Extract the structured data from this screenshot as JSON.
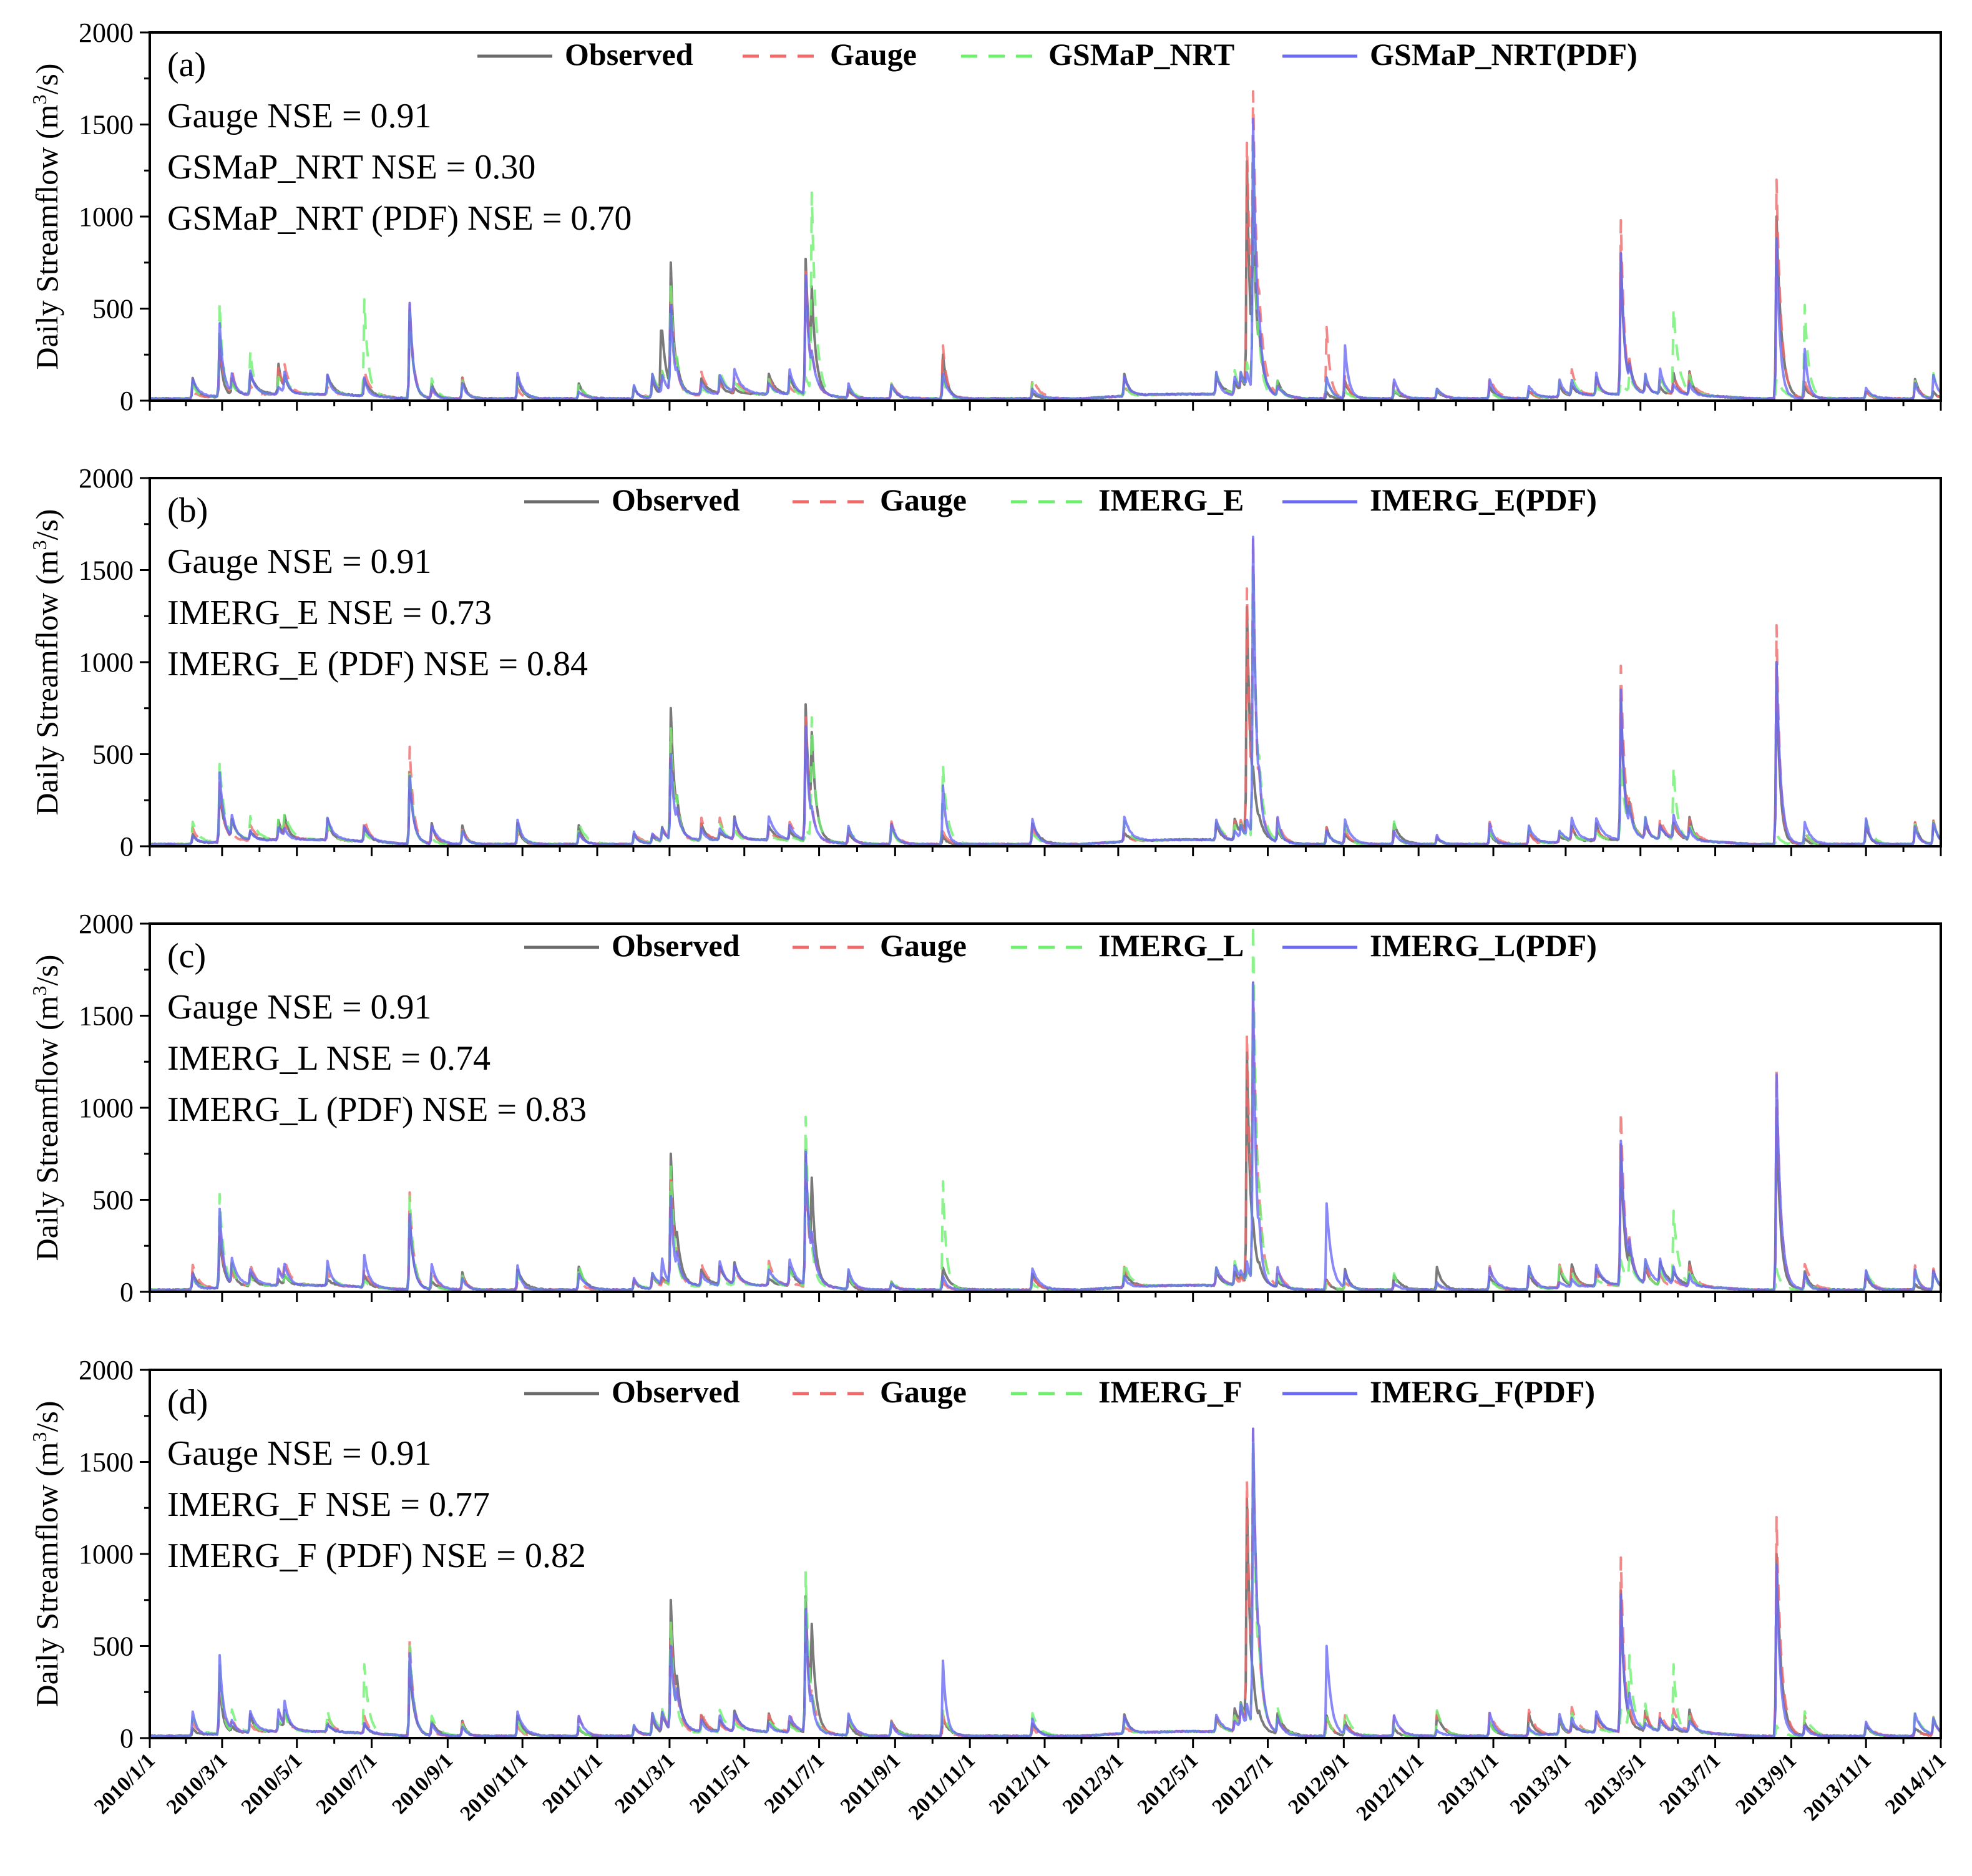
{
  "chart_data": [
    {
      "type": "line",
      "panel": "(a)",
      "ylabel": "Daily Streamflow (m³/s)",
      "ylim": [
        0,
        2000
      ],
      "yticks": [
        "0",
        "500",
        "1000",
        "1500",
        "2000"
      ],
      "legend": [
        "Observed",
        "Gauge",
        "GSMaP_NRT",
        "GSMaP_NRT(PDF)"
      ],
      "annotations": [
        "Gauge NSE = 0.91",
        "GSMaP_NRT NSE = 0.30",
        "GSMaP_NRT (PDF) NSE = 0.70"
      ],
      "series": [
        {
          "name": "Observed",
          "peaks": [
            [
              57,
              300
            ],
            [
              105,
              200
            ],
            [
              212,
              500
            ],
            [
              417,
              380
            ],
            [
              425,
              750
            ],
            [
              535,
              770
            ],
            [
              540,
              620
            ],
            [
              647,
              250
            ],
            [
              895,
              1300
            ],
            [
              900,
              1100
            ],
            [
              1200,
              800
            ],
            [
              1327,
              1000
            ]
          ]
        },
        {
          "name": "Gauge",
          "peaks": [
            [
              57,
              350
            ],
            [
              105,
              200
            ],
            [
              212,
              530
            ],
            [
              425,
              620
            ],
            [
              535,
              700
            ],
            [
              647,
              300
            ],
            [
              895,
              1400
            ],
            [
              900,
              1680
            ],
            [
              960,
              400
            ],
            [
              1200,
              980
            ],
            [
              1327,
              1200
            ]
          ]
        },
        {
          "name": "GSMaP_NRT",
          "peaks": [
            [
              57,
              530
            ],
            [
              82,
              270
            ],
            [
              175,
              550
            ],
            [
              212,
              480
            ],
            [
              425,
              650
            ],
            [
              540,
              1130
            ],
            [
              900,
              1400
            ],
            [
              1243,
              500
            ],
            [
              1350,
              520
            ]
          ]
        },
        {
          "name": "GSMaP_NRT(PDF)",
          "peaks": [
            [
              57,
              420
            ],
            [
              212,
              530
            ],
            [
              425,
              520
            ],
            [
              535,
              680
            ],
            [
              900,
              1530
            ],
            [
              975,
              300
            ],
            [
              1200,
              800
            ],
            [
              1327,
              880
            ],
            [
              1350,
              280
            ]
          ]
        }
      ]
    },
    {
      "type": "line",
      "panel": "(b)",
      "ylabel": "Daily Streamflow (m³/s)",
      "ylim": [
        0,
        2000
      ],
      "yticks": [
        "0",
        "500",
        "1000",
        "1500",
        "2000"
      ],
      "legend": [
        "Observed",
        "Gauge",
        "IMERG_E",
        "IMERG_E(PDF)"
      ],
      "annotations": [
        "Gauge NSE = 0.91",
        "IMERG_E NSE = 0.73",
        "IMERG_E (PDF) NSE = 0.84"
      ],
      "series": [
        {
          "name": "Observed",
          "peaks": [
            [
              57,
              300
            ],
            [
              212,
              400
            ],
            [
              425,
              750
            ],
            [
              535,
              770
            ],
            [
              540,
              620
            ],
            [
              895,
              1300
            ],
            [
              1200,
              800
            ],
            [
              1327,
              1000
            ]
          ]
        },
        {
          "name": "Gauge",
          "peaks": [
            [
              57,
              350
            ],
            [
              212,
              540
            ],
            [
              425,
              620
            ],
            [
              535,
              700
            ],
            [
              895,
              1400
            ],
            [
              900,
              1680
            ],
            [
              1200,
              980
            ],
            [
              1327,
              1200
            ]
          ]
        },
        {
          "name": "IMERG_E",
          "peaks": [
            [
              57,
              460
            ],
            [
              212,
              420
            ],
            [
              425,
              640
            ],
            [
              540,
              700
            ],
            [
              647,
              440
            ],
            [
              900,
              1500
            ],
            [
              1200,
              450
            ],
            [
              1243,
              430
            ]
          ]
        },
        {
          "name": "IMERG_E(PDF)",
          "peaks": [
            [
              57,
              400
            ],
            [
              212,
              380
            ],
            [
              425,
              500
            ],
            [
              535,
              650
            ],
            [
              647,
              330
            ],
            [
              900,
              1680
            ],
            [
              1200,
              850
            ],
            [
              1327,
              1000
            ]
          ]
        }
      ]
    },
    {
      "type": "line",
      "panel": "(c)",
      "ylabel": "Daily Streamflow (m³/s)",
      "ylim": [
        0,
        2000
      ],
      "yticks": [
        "0",
        "500",
        "1000",
        "1500",
        "2000"
      ],
      "legend": [
        "Observed",
        "Gauge",
        "IMERG_L",
        "IMERG_L(PDF)"
      ],
      "annotations": [
        "Gauge NSE  = 0.91",
        "IMERG_L NSE = 0.74",
        "IMERG_L (PDF) NSE = 0.83"
      ],
      "series": [
        {
          "name": "Observed",
          "peaks": [
            [
              57,
              300
            ],
            [
              212,
              400
            ],
            [
              425,
              750
            ],
            [
              535,
              770
            ],
            [
              540,
              620
            ],
            [
              895,
              1300
            ],
            [
              1200,
              800
            ],
            [
              1327,
              1000
            ]
          ]
        },
        {
          "name": "Gauge",
          "peaks": [
            [
              57,
              350
            ],
            [
              212,
              540
            ],
            [
              425,
              620
            ],
            [
              535,
              700
            ],
            [
              895,
              1400
            ],
            [
              900,
              1680
            ],
            [
              1200,
              980
            ],
            [
              1327,
              1200
            ]
          ]
        },
        {
          "name": "IMERG_L",
          "peaks": [
            [
              57,
              530
            ],
            [
              212,
              520
            ],
            [
              425,
              680
            ],
            [
              535,
              950
            ],
            [
              647,
              600
            ],
            [
              900,
              2000
            ],
            [
              1243,
              440
            ]
          ]
        },
        {
          "name": "IMERG_L(PDF)",
          "peaks": [
            [
              57,
              450
            ],
            [
              175,
              200
            ],
            [
              212,
              420
            ],
            [
              425,
              520
            ],
            [
              535,
              760
            ],
            [
              900,
              1680
            ],
            [
              960,
              480
            ],
            [
              1200,
              820
            ],
            [
              1327,
              1180
            ]
          ]
        }
      ]
    },
    {
      "type": "line",
      "panel": "(d)",
      "ylabel": "Daily Streamflow (m³/s)",
      "ylim": [
        0,
        2000
      ],
      "yticks": [
        "0",
        "500",
        "1000",
        "1500",
        "2000"
      ],
      "legend": [
        "Observed",
        "Gauge",
        "IMERG_F",
        "IMERG_F(PDF)"
      ],
      "annotations": [
        "Gauge NSE = 0.91",
        "IMERG_F NSE = 0.77",
        "IMERG_F (PDF) NSE = 0.82"
      ],
      "series": [
        {
          "name": "Observed",
          "peaks": [
            [
              57,
              300
            ],
            [
              212,
              400
            ],
            [
              425,
              750
            ],
            [
              535,
              770
            ],
            [
              540,
              620
            ],
            [
              895,
              1300
            ],
            [
              1200,
              800
            ],
            [
              1327,
              1000
            ]
          ]
        },
        {
          "name": "Gauge",
          "peaks": [
            [
              57,
              350
            ],
            [
              212,
              540
            ],
            [
              425,
              620
            ],
            [
              535,
              700
            ],
            [
              895,
              1400
            ],
            [
              900,
              1680
            ],
            [
              1200,
              980
            ],
            [
              1327,
              1200
            ]
          ]
        },
        {
          "name": "IMERG_F",
          "peaks": [
            [
              57,
              400
            ],
            [
              175,
              400
            ],
            [
              212,
              500
            ],
            [
              425,
              640
            ],
            [
              535,
              900
            ],
            [
              900,
              1600
            ],
            [
              1207,
              450
            ],
            [
              1243,
              400
            ]
          ]
        },
        {
          "name": "IMERG_F(PDF)",
          "peaks": [
            [
              57,
              450
            ],
            [
              212,
              460
            ],
            [
              425,
              500
            ],
            [
              535,
              700
            ],
            [
              647,
              420
            ],
            [
              900,
              1680
            ],
            [
              960,
              500
            ],
            [
              1200,
              780
            ],
            [
              1327,
              940
            ]
          ]
        }
      ]
    }
  ],
  "x_axis": {
    "type": "date",
    "start": "2010/1/1",
    "end": "2014/1/1",
    "tick_labels": [
      "2010/1/1",
      "2010/3/1",
      "2010/5/1",
      "2010/7/1",
      "2010/9/1",
      "2010/11/1",
      "2011/1/1",
      "2011/3/1",
      "2011/5/1",
      "2011/7/1",
      "2011/9/1",
      "2011/11/1",
      "2012/1/1",
      "2012/3/1",
      "2012/5/1",
      "2012/7/1",
      "2012/9/1",
      "2012/11/1",
      "2013/1/1",
      "2013/3/1",
      "2013/5/1",
      "2013/7/1",
      "2013/9/1",
      "2013/11/1",
      "2014/1/1"
    ],
    "tick_days": [
      0,
      59,
      120,
      181,
      243,
      304,
      365,
      424,
      485,
      546,
      608,
      669,
      730,
      790,
      851,
      912,
      974,
      1035,
      1096,
      1155,
      1216,
      1277,
      1339,
      1400,
      1461
    ]
  },
  "colors": {
    "Observed": "#6b6b6b",
    "Gauge": "#f06a6a",
    "Satellite": "#6ef06e",
    "PDF": "#6a6af5",
    "frame": "#000000"
  }
}
